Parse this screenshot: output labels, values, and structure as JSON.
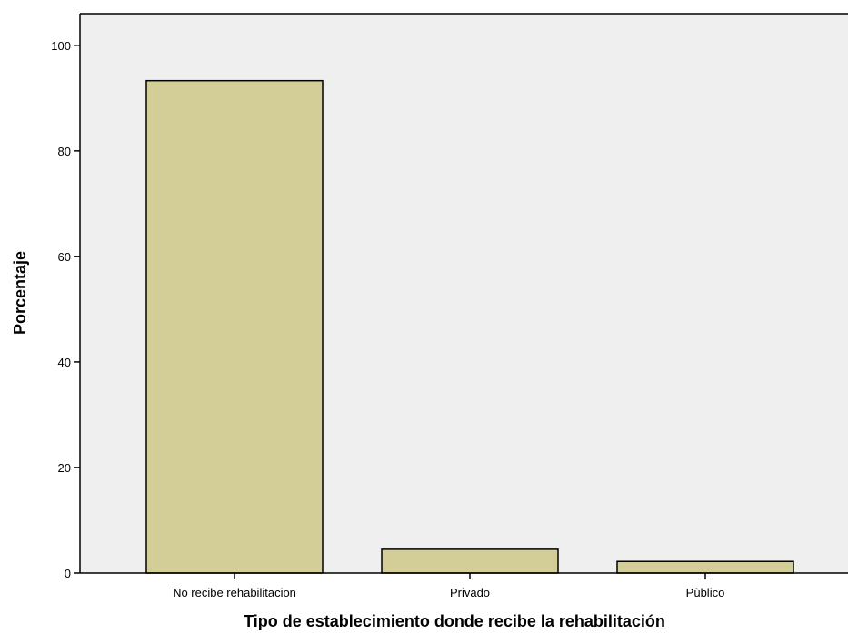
{
  "chart_data": {
    "type": "bar",
    "title": "",
    "xlabel": "Tipo de establecimiento donde recibe la rehabilitación",
    "ylabel": "Porcentaje",
    "categories": [
      "No recibe rehabilitacion",
      "Privado",
      "Pùblico"
    ],
    "values": [
      93.3,
      4.5,
      2.2
    ],
    "ylim": [
      0,
      106
    ],
    "yticks": [
      0,
      20,
      40,
      60,
      80,
      100
    ],
    "grid": false,
    "legend": "none"
  },
  "colors": {
    "plot_background": "#efefef",
    "bar_fill": "#d3ce97",
    "bar_stroke": "#000000",
    "axis": "#000000"
  }
}
